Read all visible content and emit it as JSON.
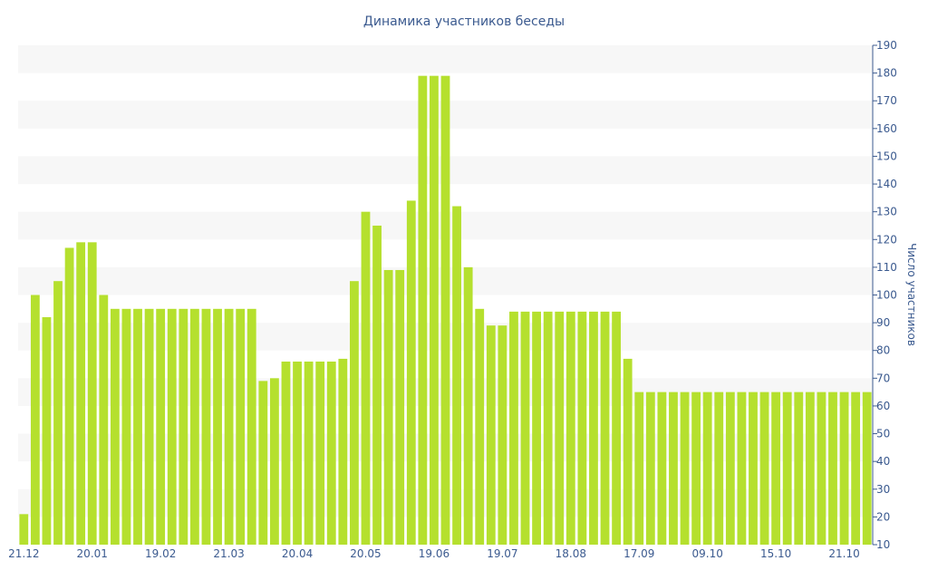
{
  "chart_data": {
    "type": "bar",
    "title": "Динамика участников беседы",
    "ylabel": "Число участников",
    "xlabel": "",
    "ylim": [
      10,
      190
    ],
    "yticks": [
      10,
      20,
      30,
      40,
      50,
      60,
      70,
      80,
      90,
      100,
      110,
      120,
      130,
      140,
      150,
      160,
      170,
      180,
      190
    ],
    "y_axis_side": "right",
    "grid": "horizontal bands",
    "legend": "none",
    "bar_color": "#b5e02e",
    "band_color": "#f7f7f7",
    "text_color": "#3b5a8f",
    "x_tick_labels": [
      {
        "index": 0,
        "label": "21.12"
      },
      {
        "index": 6,
        "label": "20.01"
      },
      {
        "index": 12,
        "label": "19.02"
      },
      {
        "index": 18,
        "label": "21.03"
      },
      {
        "index": 24,
        "label": "20.04"
      },
      {
        "index": 30,
        "label": "20.05"
      },
      {
        "index": 36,
        "label": "19.06"
      },
      {
        "index": 42,
        "label": "19.07"
      },
      {
        "index": 48,
        "label": "18.08"
      },
      {
        "index": 54,
        "label": "17.09"
      },
      {
        "index": 60,
        "label": "09.10"
      },
      {
        "index": 66,
        "label": "15.10"
      },
      {
        "index": 72,
        "label": "21.10"
      }
    ],
    "values": [
      21,
      100,
      92,
      105,
      117,
      119,
      119,
      100,
      95,
      95,
      95,
      95,
      95,
      95,
      95,
      95,
      95,
      95,
      95,
      95,
      95,
      69,
      70,
      76,
      76,
      76,
      76,
      76,
      77,
      105,
      130,
      125,
      109,
      109,
      134,
      179,
      179,
      179,
      132,
      110,
      95,
      89,
      89,
      94,
      94,
      94,
      94,
      94,
      94,
      94,
      94,
      94,
      94,
      77,
      65,
      65,
      65,
      65,
      65,
      65,
      65,
      65,
      65,
      65,
      65,
      65,
      65,
      65,
      65,
      65,
      65,
      65,
      65,
      65,
      65
    ]
  }
}
